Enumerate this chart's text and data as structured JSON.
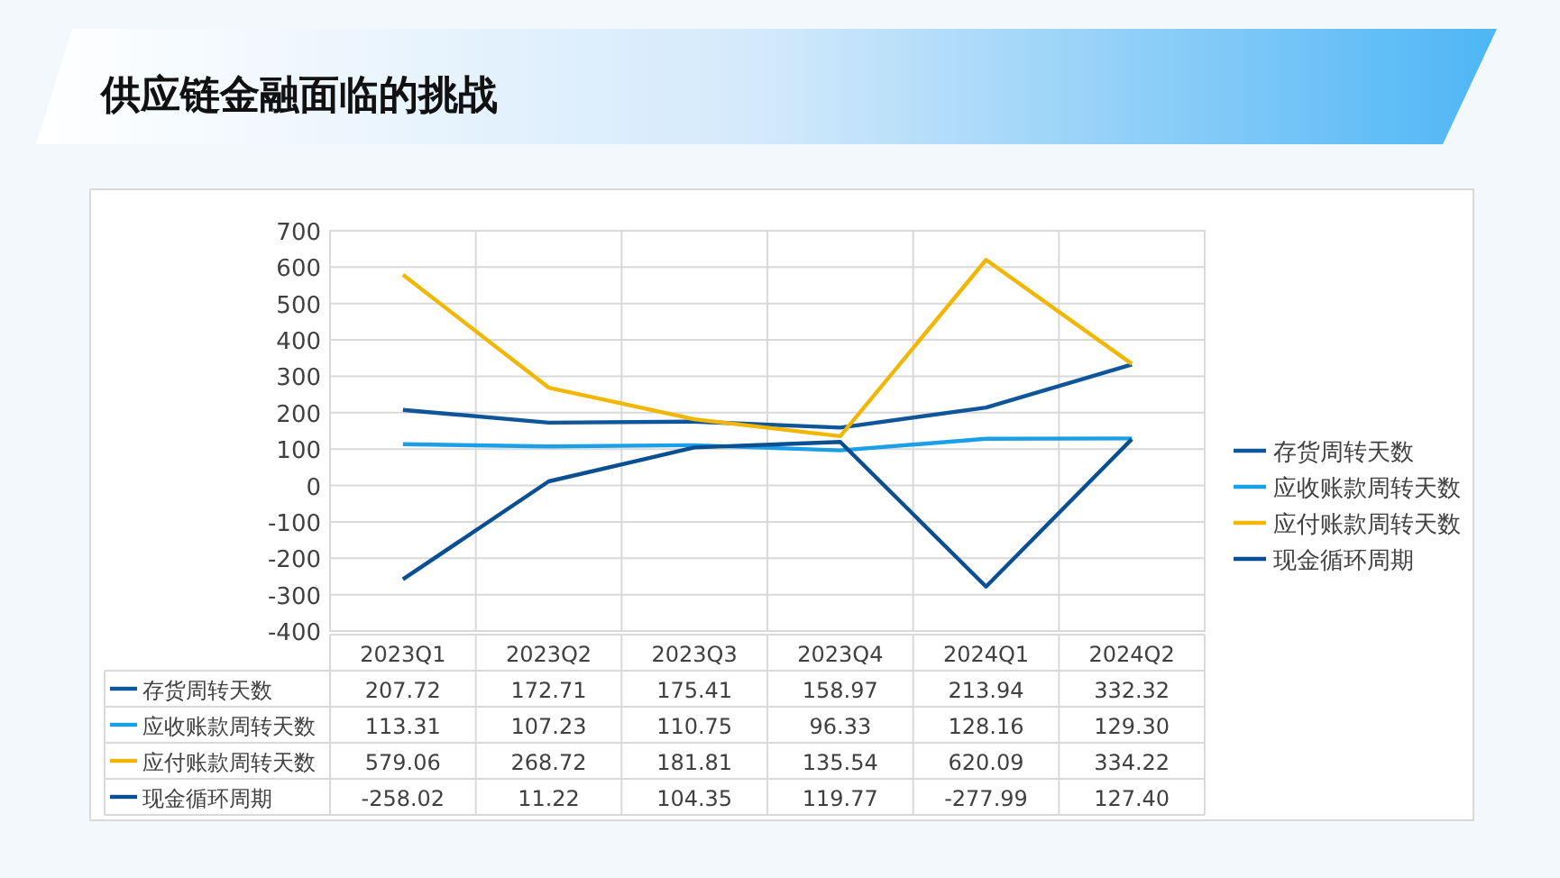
{
  "chart_data": {
    "type": "line",
    "title": "供应链金融面临的挑战",
    "categories": [
      "2023Q1",
      "2023Q2",
      "2023Q3",
      "2023Q4",
      "2024Q1",
      "2024Q2"
    ],
    "series": [
      {
        "name": "存货周转天数",
        "color": "#0f5599",
        "values": [
          207.72,
          172.71,
          175.41,
          158.97,
          213.94,
          332.32
        ],
        "value_labels": [
          "207.72",
          "172.71",
          "175.41",
          "158.97",
          "213.94",
          "332.32"
        ]
      },
      {
        "name": "应收账款周转天数",
        "color": "#1b9fe6",
        "values": [
          113.31,
          107.23,
          110.75,
          96.33,
          128.16,
          129.3
        ],
        "value_labels": [
          "113.31",
          "107.23",
          "110.75",
          "96.33",
          "128.16",
          "129.30"
        ]
      },
      {
        "name": "应付账款周转天数",
        "color": "#f2b705",
        "values": [
          579.06,
          268.72,
          181.81,
          135.54,
          620.09,
          334.22
        ],
        "value_labels": [
          "579.06",
          "268.72",
          "181.81",
          "135.54",
          "620.09",
          "334.22"
        ]
      },
      {
        "name": "现金循环周期",
        "color": "#0a4f91",
        "values": [
          -258.02,
          11.22,
          104.35,
          119.77,
          -277.99,
          127.4
        ],
        "value_labels": [
          "-258.02",
          "11.22",
          "104.35",
          "119.77",
          "-277.99",
          "127.40"
        ]
      }
    ],
    "ylim": [
      -400,
      700
    ],
    "yticks": [
      -400,
      -300,
      -200,
      -100,
      0,
      100,
      200,
      300,
      400,
      500,
      600,
      700
    ],
    "grid": true,
    "legend": "right"
  }
}
